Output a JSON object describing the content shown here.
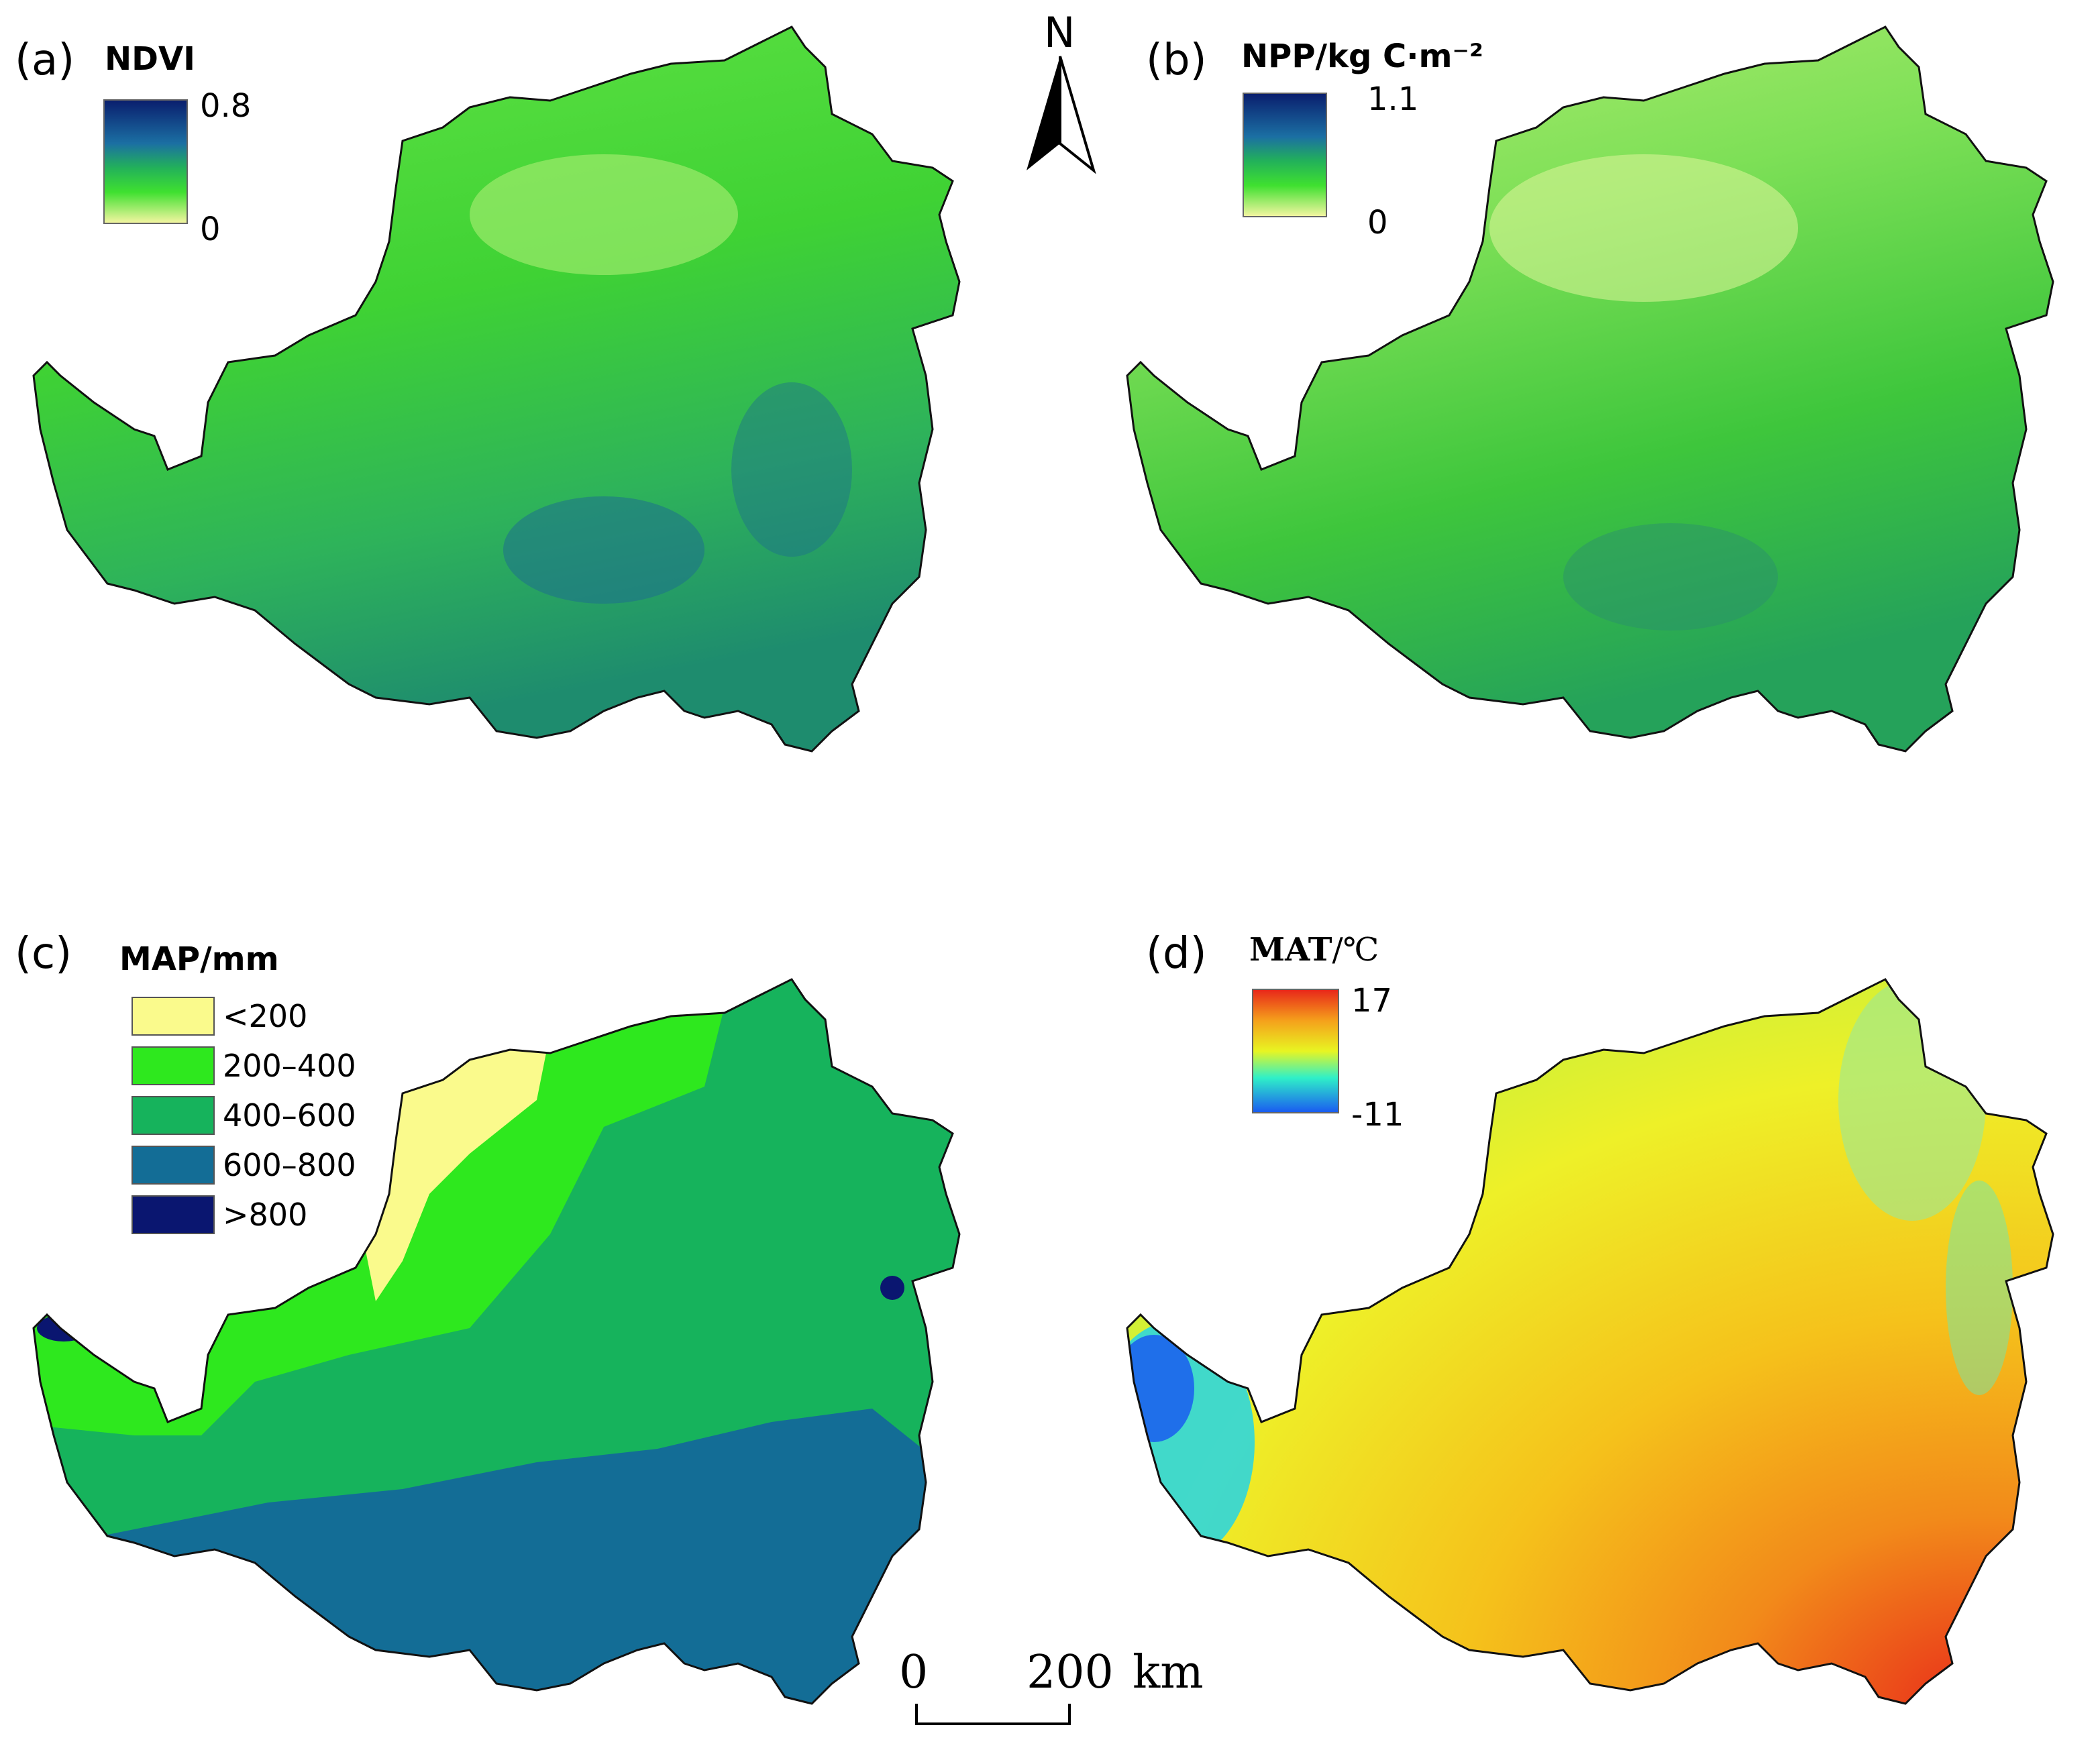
{
  "panels": [
    {
      "label": "(a)",
      "title": "NDVI",
      "max": "0.8",
      "min": "0",
      "ramp": [
        "#0a1f6e",
        "#1b6fa3",
        "#22b15a",
        "#3fe030",
        "#f2f5a0"
      ]
    },
    {
      "label": "(b)",
      "title": "NPP/kg C·m⁻²",
      "max": "1.1",
      "min": "0",
      "ramp": [
        "#0a1f6e",
        "#1b6fa3",
        "#22b15a",
        "#3fe030",
        "#f2f5a0"
      ]
    },
    {
      "label": "(c)",
      "title": "MAP/mm",
      "classes": [
        {
          "label": "<200",
          "color": "#fafa8c"
        },
        {
          "label": "200–400",
          "color": "#2ee81e"
        },
        {
          "label": "400–600",
          "color": "#16b35c"
        },
        {
          "label": "600–800",
          "color": "#136d96"
        },
        {
          "label": ">800",
          "color": "#0a1670"
        }
      ]
    },
    {
      "label": "(d)",
      "title_main": "MAT",
      "title_unit": "/℃",
      "max": "17",
      "min": "-11",
      "ramp": [
        "#e8281a",
        "#f5c21b",
        "#e8f522",
        "#2ff0c8",
        "#1a5cf0"
      ]
    }
  ],
  "north": {
    "label": "N"
  },
  "scale_bar": {
    "start": "0",
    "end": "200",
    "unit": "km"
  },
  "colors": {
    "ndvi_base": "#36d12c",
    "npp_base": "#5ad83a",
    "outline": "#111111"
  }
}
